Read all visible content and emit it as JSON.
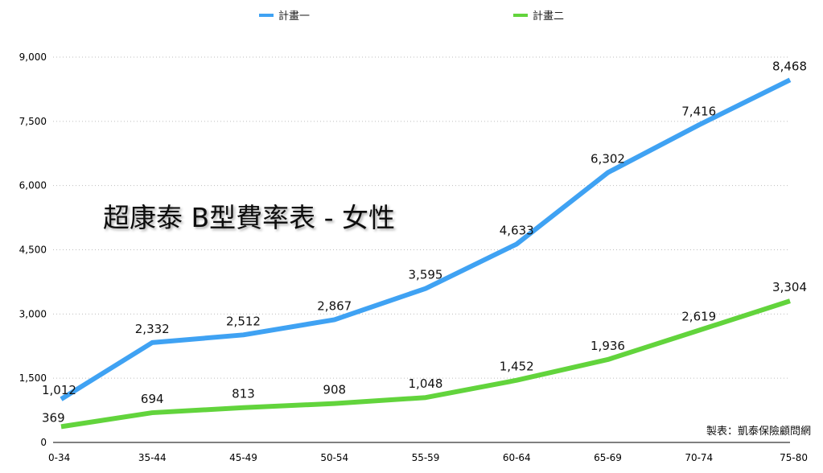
{
  "chart_data": {
    "type": "line",
    "title": "超康泰 B型費率表 - 女性",
    "credit": "製表：凱泰保險顧問網",
    "categories": [
      "0-34",
      "35-44",
      "45-49",
      "50-54",
      "55-59",
      "60-64",
      "65-69",
      "70-74",
      "75-80"
    ],
    "series": [
      {
        "name": "計畫一",
        "color": "#3fa2f3",
        "values": [
          1012,
          2332,
          2512,
          2867,
          3595,
          4633,
          6302,
          7416,
          8468
        ],
        "labels": [
          "1,012",
          "2,332",
          "2,512",
          "2,867",
          "3,595",
          "4,633",
          "6,302",
          "7,416",
          "8,468"
        ]
      },
      {
        "name": "計畫二",
        "color": "#62d43c",
        "values": [
          369,
          694,
          813,
          908,
          1048,
          1452,
          1936,
          2619,
          3304
        ],
        "labels": [
          "369",
          "694",
          "813",
          "908",
          "1,048",
          "1,452",
          "1,936",
          "2,619",
          "3,304"
        ]
      }
    ],
    "ylim": [
      0,
      9000
    ],
    "yticks": [
      0,
      1500,
      3000,
      4500,
      6000,
      7500,
      9000
    ],
    "ytick_labels": [
      "0",
      "1,500",
      "3,000",
      "4,500",
      "6,000",
      "7,500",
      "9,000"
    ],
    "xlabel": "",
    "ylabel": "",
    "grid": true,
    "legend_position": "top-center"
  }
}
